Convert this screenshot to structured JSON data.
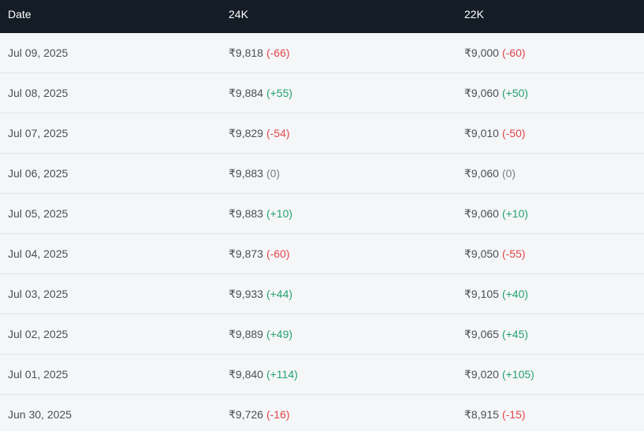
{
  "table": {
    "headers": {
      "date": "Date",
      "k24": "24K",
      "k22": "22K"
    },
    "rows": [
      {
        "date": "Jul 09, 2025",
        "k24_price": "₹9,818",
        "k24_change": "(-66)",
        "k24_dir": "down",
        "k22_price": "₹9,000",
        "k22_change": "(-60)",
        "k22_dir": "down"
      },
      {
        "date": "Jul 08, 2025",
        "k24_price": "₹9,884",
        "k24_change": "(+55)",
        "k24_dir": "up",
        "k22_price": "₹9,060",
        "k22_change": "(+50)",
        "k22_dir": "up"
      },
      {
        "date": "Jul 07, 2025",
        "k24_price": "₹9,829",
        "k24_change": "(-54)",
        "k24_dir": "down",
        "k22_price": "₹9,010",
        "k22_change": "(-50)",
        "k22_dir": "down"
      },
      {
        "date": "Jul 06, 2025",
        "k24_price": "₹9,883",
        "k24_change": "(0)",
        "k24_dir": "flat",
        "k22_price": "₹9,060",
        "k22_change": "(0)",
        "k22_dir": "flat"
      },
      {
        "date": "Jul 05, 2025",
        "k24_price": "₹9,883",
        "k24_change": "(+10)",
        "k24_dir": "up",
        "k22_price": "₹9,060",
        "k22_change": "(+10)",
        "k22_dir": "up"
      },
      {
        "date": "Jul 04, 2025",
        "k24_price": "₹9,873",
        "k24_change": "(-60)",
        "k24_dir": "down",
        "k22_price": "₹9,050",
        "k22_change": "(-55)",
        "k22_dir": "down"
      },
      {
        "date": "Jul 03, 2025",
        "k24_price": "₹9,933",
        "k24_change": "(+44)",
        "k24_dir": "up",
        "k22_price": "₹9,105",
        "k22_change": "(+40)",
        "k22_dir": "up"
      },
      {
        "date": "Jul 02, 2025",
        "k24_price": "₹9,889",
        "k24_change": "(+49)",
        "k24_dir": "up",
        "k22_price": "₹9,065",
        "k22_change": "(+45)",
        "k22_dir": "up"
      },
      {
        "date": "Jul 01, 2025",
        "k24_price": "₹9,840",
        "k24_change": "(+114)",
        "k24_dir": "up",
        "k22_price": "₹9,020",
        "k22_change": "(+105)",
        "k22_dir": "up"
      },
      {
        "date": "Jun 30, 2025",
        "k24_price": "₹9,726",
        "k24_change": "(-16)",
        "k24_dir": "down",
        "k22_price": "₹8,915",
        "k22_change": "(-15)",
        "k22_dir": "down"
      }
    ]
  },
  "colors": {
    "header_bg": "#141c26",
    "up": "#23a26d",
    "down": "#e0474c",
    "flat": "#7a7f87"
  }
}
